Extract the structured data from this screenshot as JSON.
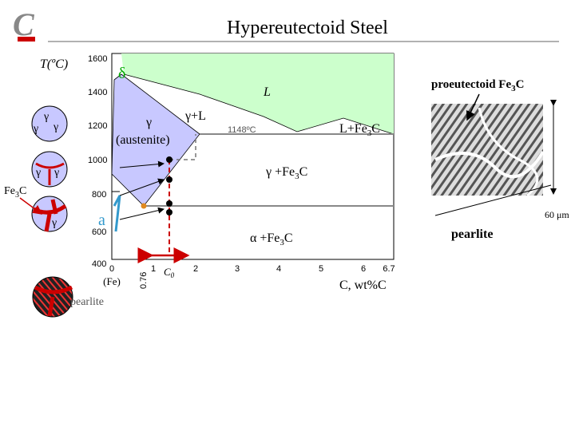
{
  "header": {
    "title": "Hypereutectoid Steel"
  },
  "diagram": {
    "y_axis_label": "T(ºC)",
    "y_ticks": [
      "1600",
      "1400",
      "1200",
      "1000",
      "800",
      "600",
      "400"
    ],
    "x_ticks": [
      "0",
      "1",
      "2",
      "3",
      "4",
      "5",
      "6",
      "6.7"
    ],
    "x_axis_label": "C, wt%C",
    "fe_label": "(Fe)",
    "eutectoid_label": "0.76",
    "c0": {
      "text": "C",
      "sub": "0"
    },
    "regions": {
      "delta": "δ",
      "liquid": "L",
      "gamma_liquid": "γ+L",
      "gamma": "γ",
      "austenite": "(austenite)",
      "eutectic_temp": "1148ºC",
      "liquid_fe3c": {
        "text": "L+Fe",
        "sub": "3",
        "tail": "C"
      },
      "gamma_fe3c": {
        "text": "γ +Fe",
        "sub": "3",
        "tail": "C"
      },
      "alpha_fe3c": {
        "text": "α +Fe",
        "sub": "3",
        "tail": "C"
      },
      "alpha": "a"
    }
  },
  "micrograph": {
    "proeutectoid": {
      "text": "proeutectoid Fe",
      "sub": "3",
      "tail": "C"
    },
    "scale": "60 μm",
    "pearlite": "pearlite"
  },
  "microstructures": {
    "gamma": "γ",
    "fe3c": {
      "text": "Fe",
      "sub": "3",
      "tail": "C"
    },
    "pearlite": "pearlite"
  }
}
